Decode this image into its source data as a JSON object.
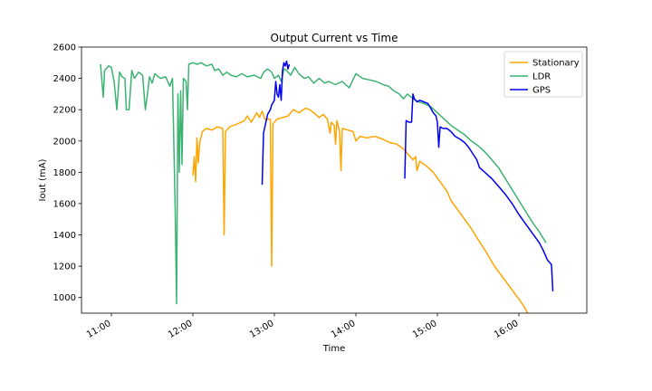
{
  "chart_data": {
    "type": "line",
    "title": "Output Current vs Time",
    "xlabel": "Time",
    "ylabel": "Iout (mA)",
    "xlim": [
      "10:38",
      "16:50"
    ],
    "ylim": [
      900,
      2600
    ],
    "xticks": [
      "11:00",
      "12:00",
      "13:00",
      "14:00",
      "15:00",
      "16:00"
    ],
    "yticks": [
      1000,
      1200,
      1400,
      1600,
      1800,
      2000,
      2200,
      2400,
      2600
    ],
    "grid": false,
    "legend_position": "top-right",
    "series": [
      {
        "name": "Stationary",
        "color": "#ffa500",
        "points": [
          [
            "12:00",
            1780
          ],
          [
            "12:01",
            1900
          ],
          [
            "12:02",
            1740
          ],
          [
            "12:03",
            2020
          ],
          [
            "12:04",
            1860
          ],
          [
            "12:05",
            1990
          ],
          [
            "12:07",
            2060
          ],
          [
            "12:10",
            2080
          ],
          [
            "12:14",
            2070
          ],
          [
            "12:18",
            2090
          ],
          [
            "12:22",
            2080
          ],
          [
            "12:23",
            1400
          ],
          [
            "12:24",
            2060
          ],
          [
            "12:27",
            2090
          ],
          [
            "12:33",
            2110
          ],
          [
            "12:38",
            2130
          ],
          [
            "12:40",
            2160
          ],
          [
            "12:43",
            2120
          ],
          [
            "12:47",
            2180
          ],
          [
            "12:49",
            2150
          ],
          [
            "12:51",
            2190
          ],
          [
            "12:53",
            2140
          ],
          [
            "12:57",
            2140
          ],
          [
            "12:58",
            1200
          ],
          [
            "12:59",
            2110
          ],
          [
            "13:02",
            2140
          ],
          [
            "13:06",
            2150
          ],
          [
            "13:10",
            2160
          ],
          [
            "13:14",
            2200
          ],
          [
            "13:18",
            2180
          ],
          [
            "13:23",
            2210
          ],
          [
            "13:26",
            2200
          ],
          [
            "13:29",
            2180
          ],
          [
            "13:33",
            2150
          ],
          [
            "13:36",
            2170
          ],
          [
            "13:39",
            2140
          ],
          [
            "13:41",
            2050
          ],
          [
            "13:42",
            2120
          ],
          [
            "13:44",
            2100
          ],
          [
            "13:45",
            1980
          ],
          [
            "13:46",
            2130
          ],
          [
            "13:48",
            2060
          ],
          [
            "13:49",
            1810
          ],
          [
            "13:50",
            2080
          ],
          [
            "13:54",
            2070
          ],
          [
            "13:58",
            2060
          ],
          [
            "14:00",
            2000
          ],
          [
            "14:03",
            2030
          ],
          [
            "14:08",
            2020
          ],
          [
            "14:14",
            2030
          ],
          [
            "14:20",
            2010
          ],
          [
            "14:25",
            1990
          ],
          [
            "14:30",
            1980
          ],
          [
            "14:35",
            1950
          ],
          [
            "14:38",
            1920
          ],
          [
            "14:42",
            1880
          ],
          [
            "14:44",
            1900
          ],
          [
            "14:45",
            1810
          ],
          [
            "14:47",
            1870
          ],
          [
            "14:52",
            1840
          ],
          [
            "14:57",
            1800
          ],
          [
            "15:02",
            1740
          ],
          [
            "15:07",
            1680
          ],
          [
            "15:10",
            1620
          ],
          [
            "15:15",
            1560
          ],
          [
            "15:20",
            1500
          ],
          [
            "15:25",
            1440
          ],
          [
            "15:30",
            1370
          ],
          [
            "15:36",
            1290
          ],
          [
            "15:42",
            1200
          ],
          [
            "15:48",
            1130
          ],
          [
            "15:54",
            1060
          ],
          [
            "16:00",
            990
          ],
          [
            "16:04",
            940
          ],
          [
            "16:07",
            890
          ]
        ]
      },
      {
        "name": "LDR",
        "color": "#3cb371",
        "points": [
          [
            "10:52",
            2490
          ],
          [
            "10:54",
            2280
          ],
          [
            "10:55",
            2450
          ],
          [
            "10:58",
            2480
          ],
          [
            "11:00",
            2470
          ],
          [
            "11:02",
            2380
          ],
          [
            "11:04",
            2200
          ],
          [
            "11:06",
            2440
          ],
          [
            "11:08",
            2410
          ],
          [
            "11:10",
            2400
          ],
          [
            "11:11",
            2200
          ],
          [
            "11:13",
            2200
          ],
          [
            "11:15",
            2450
          ],
          [
            "11:17",
            2400
          ],
          [
            "11:20",
            2440
          ],
          [
            "11:23",
            2420
          ],
          [
            "11:25",
            2200
          ],
          [
            "11:27",
            2330
          ],
          [
            "11:28",
            2410
          ],
          [
            "11:30",
            2370
          ],
          [
            "11:32",
            2430
          ],
          [
            "11:36",
            2400
          ],
          [
            "11:40",
            2410
          ],
          [
            "11:43",
            2350
          ],
          [
            "11:45",
            2400
          ],
          [
            "11:47",
            1550
          ],
          [
            "11:48",
            960
          ],
          [
            "11:49",
            2300
          ],
          [
            "11:50",
            1800
          ],
          [
            "11:51",
            2320
          ],
          [
            "11:52",
            1850
          ],
          [
            "11:53",
            2400
          ],
          [
            "11:55",
            2380
          ],
          [
            "11:56",
            2200
          ],
          [
            "11:57",
            2490
          ],
          [
            "12:00",
            2500
          ],
          [
            "12:03",
            2490
          ],
          [
            "12:06",
            2500
          ],
          [
            "12:10",
            2480
          ],
          [
            "12:14",
            2490
          ],
          [
            "12:16",
            2450
          ],
          [
            "12:19",
            2460
          ],
          [
            "12:22",
            2420
          ],
          [
            "12:25",
            2440
          ],
          [
            "12:28",
            2420
          ],
          [
            "12:32",
            2410
          ],
          [
            "12:36",
            2430
          ],
          [
            "12:40",
            2410
          ],
          [
            "12:45",
            2420
          ],
          [
            "12:50",
            2400
          ],
          [
            "12:52",
            2440
          ],
          [
            "12:55",
            2460
          ],
          [
            "12:58",
            2440
          ],
          [
            "13:00",
            2400
          ],
          [
            "13:03",
            2420
          ],
          [
            "13:05",
            2380
          ],
          [
            "13:07",
            2460
          ],
          [
            "13:09",
            2450
          ],
          [
            "13:12",
            2420
          ],
          [
            "13:15",
            2470
          ],
          [
            "13:18",
            2430
          ],
          [
            "13:22",
            2400
          ],
          [
            "13:25",
            2410
          ],
          [
            "13:29",
            2370
          ],
          [
            "13:33",
            2400
          ],
          [
            "13:37",
            2370
          ],
          [
            "13:40",
            2380
          ],
          [
            "13:45",
            2360
          ],
          [
            "13:50",
            2380
          ],
          [
            "13:55",
            2340
          ],
          [
            "14:00",
            2430
          ],
          [
            "14:05",
            2400
          ],
          [
            "14:10",
            2390
          ],
          [
            "14:15",
            2380
          ],
          [
            "14:20",
            2360
          ],
          [
            "14:24",
            2350
          ],
          [
            "14:28",
            2320
          ],
          [
            "14:32",
            2300
          ],
          [
            "14:35",
            2270
          ],
          [
            "14:38",
            2300
          ],
          [
            "14:42",
            2270
          ],
          [
            "14:46",
            2250
          ],
          [
            "14:50",
            2240
          ],
          [
            "14:55",
            2220
          ],
          [
            "15:00",
            2180
          ],
          [
            "15:05",
            2140
          ],
          [
            "15:10",
            2100
          ],
          [
            "15:15",
            2070
          ],
          [
            "15:20",
            2040
          ],
          [
            "15:25",
            2000
          ],
          [
            "15:30",
            1970
          ],
          [
            "15:35",
            1930
          ],
          [
            "15:40",
            1880
          ],
          [
            "15:45",
            1830
          ],
          [
            "15:50",
            1760
          ],
          [
            "15:55",
            1690
          ],
          [
            "16:00",
            1620
          ],
          [
            "16:05",
            1550
          ],
          [
            "16:10",
            1480
          ],
          [
            "16:15",
            1420
          ],
          [
            "16:20",
            1350
          ]
        ]
      },
      {
        "name": "GPS",
        "color": "#0000ee",
        "segments": [
          [
            [
              "12:51",
              1720
            ],
            [
              "12:52",
              2050
            ],
            [
              "12:54",
              2130
            ],
            [
              "12:55",
              2170
            ],
            [
              "12:57",
              2200
            ],
            [
              "12:58",
              2230
            ],
            [
              "13:00",
              2260
            ],
            [
              "13:01",
              2380
            ],
            [
              "13:02",
              2300
            ],
            [
              "13:03",
              2280
            ],
            [
              "13:04",
              2360
            ],
            [
              "13:05",
              2260
            ],
            [
              "13:06",
              2450
            ],
            [
              "13:07",
              2500
            ],
            [
              "13:08",
              2480
            ],
            [
              "13:09",
              2510
            ],
            [
              "13:10",
              2460
            ],
            [
              "13:11",
              2490
            ]
          ],
          [
            [
              "14:36",
              1760
            ],
            [
              "14:37",
              2130
            ],
            [
              "14:39",
              2120
            ],
            [
              "14:41",
              2120
            ],
            [
              "14:42",
              2300
            ],
            [
              "14:43",
              2270
            ],
            [
              "14:45",
              2250
            ],
            [
              "14:47",
              2260
            ],
            [
              "14:50",
              2250
            ],
            [
              "14:53",
              2240
            ],
            [
              "14:55",
              2210
            ],
            [
              "14:57",
              2180
            ],
            [
              "14:59",
              2160
            ],
            [
              "15:00",
              2120
            ],
            [
              "15:01",
              1960
            ],
            [
              "15:02",
              2090
            ],
            [
              "15:04",
              2080
            ],
            [
              "15:07",
              2080
            ],
            [
              "15:10",
              2060
            ],
            [
              "15:13",
              2030
            ],
            [
              "15:17",
              2010
            ],
            [
              "15:20",
              1990
            ],
            [
              "15:23",
              1960
            ],
            [
              "15:26",
              1920
            ],
            [
              "15:29",
              1880
            ],
            [
              "15:31",
              1830
            ],
            [
              "15:35",
              1800
            ],
            [
              "15:40",
              1760
            ],
            [
              "15:45",
              1710
            ],
            [
              "15:50",
              1660
            ],
            [
              "15:55",
              1600
            ],
            [
              "16:00",
              1530
            ],
            [
              "16:05",
              1470
            ],
            [
              "16:10",
              1410
            ],
            [
              "16:15",
              1350
            ],
            [
              "16:18",
              1300
            ],
            [
              "16:21",
              1240
            ],
            [
              "16:24",
              1210
            ],
            [
              "16:25",
              1040
            ]
          ]
        ]
      }
    ]
  }
}
